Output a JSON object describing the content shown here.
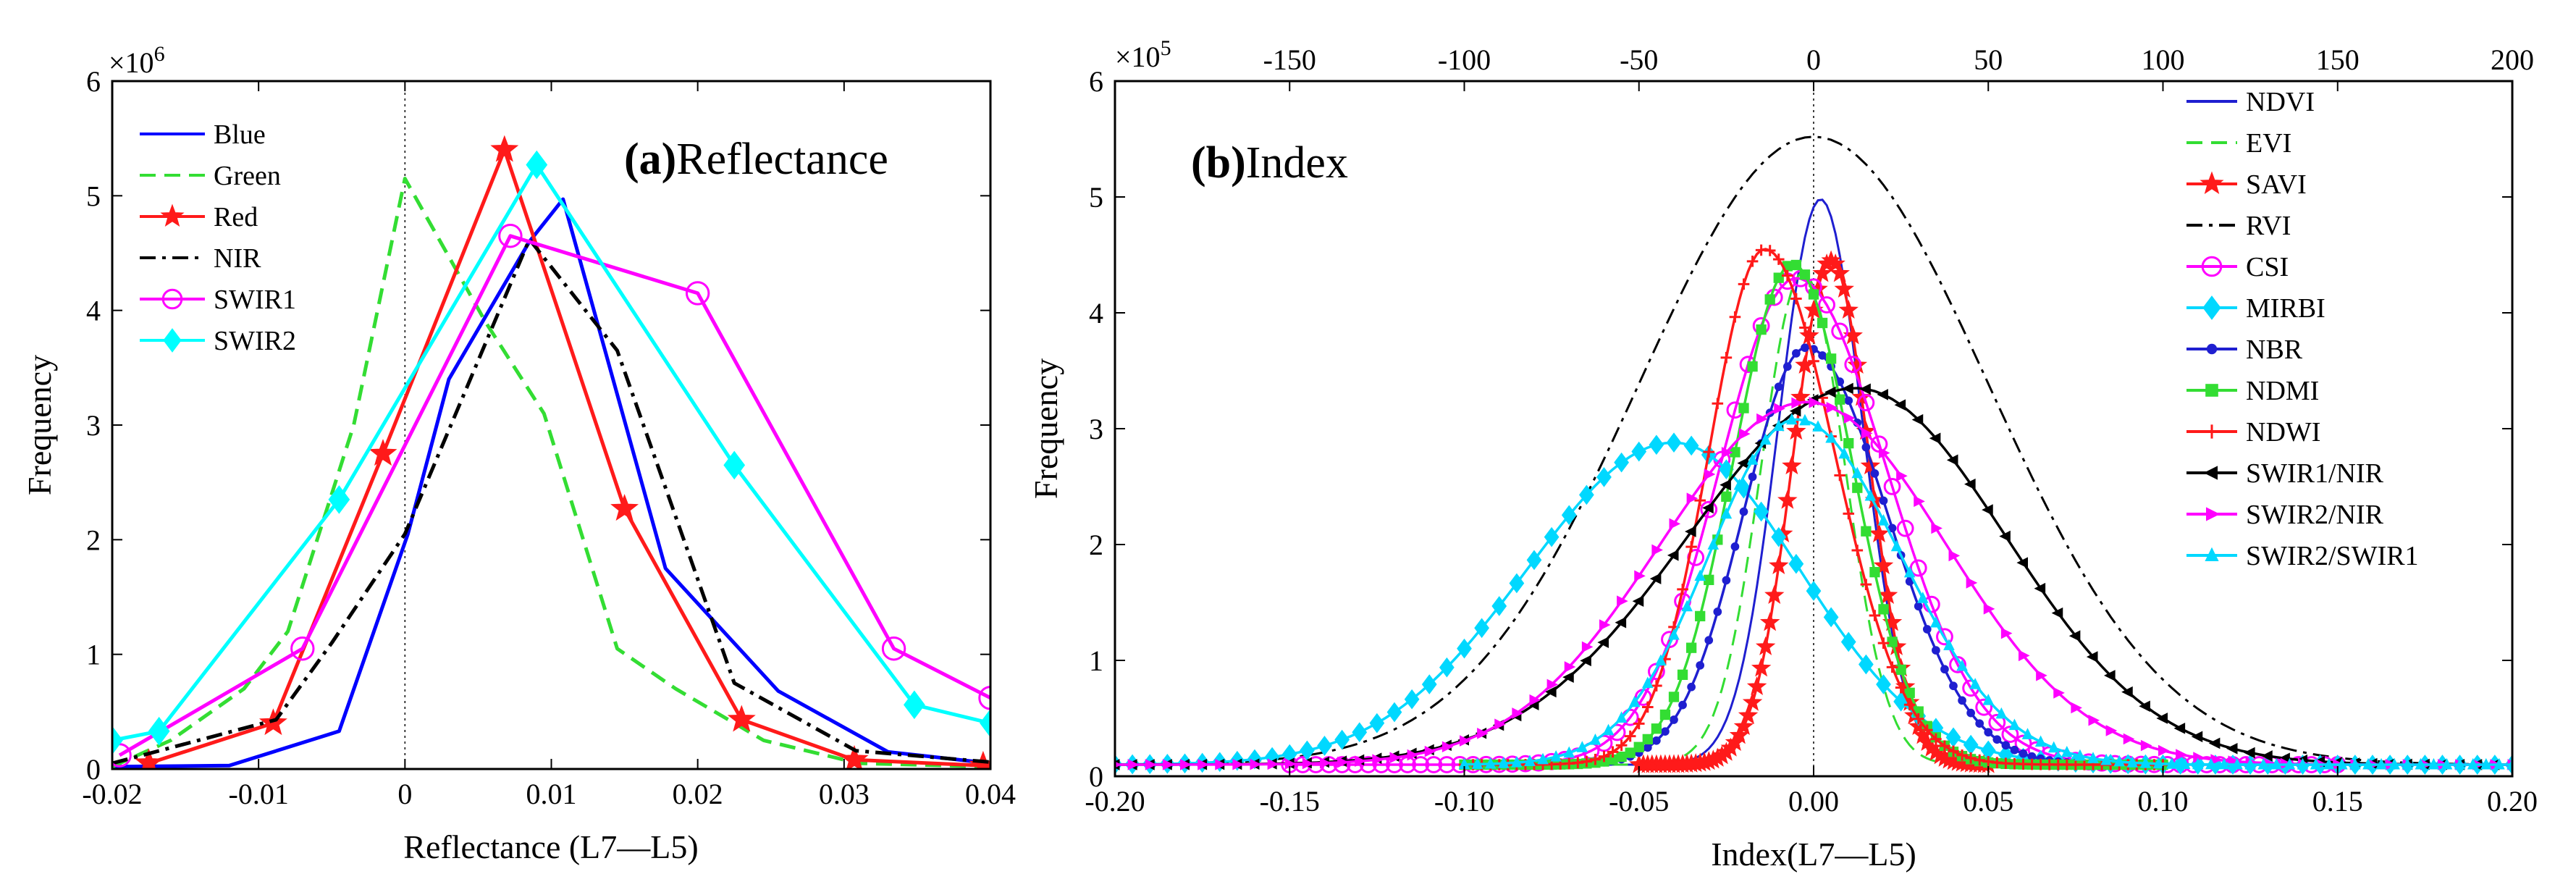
{
  "chart_data": [
    {
      "panel": "a",
      "type": "line",
      "title_prefix": "(a)",
      "title": "Reflectance",
      "xlabel": "Reflectance (L7—L5)",
      "ylabel": "Frequency",
      "exponent_label": "×10",
      "exponent_power": "6",
      "xlim": [
        -0.02,
        0.04
      ],
      "ylim": [
        0,
        6
      ],
      "xticks": [
        -0.02,
        -0.01,
        0,
        0.01,
        0.02,
        0.03,
        0.04
      ],
      "xtick_labels": [
        "-0.02",
        "-0.01",
        "0",
        "0.01",
        "0.02",
        "0.03",
        "0.04"
      ],
      "yticks": [
        0,
        1,
        2,
        3,
        4,
        5,
        6
      ],
      "ytick_labels": [
        "0",
        "1",
        "2",
        "3",
        "4",
        "5",
        "6"
      ],
      "vline_x": 0,
      "legend_position": "top-left",
      "series": [
        {
          "name": "Blue",
          "color": "#0000ff",
          "dash": "solid",
          "marker": "none",
          "x": [
            -0.02,
            -0.012,
            -0.0045,
            0.0002,
            0.003,
            0.0085,
            0.0108,
            0.0178,
            0.0255,
            0.033,
            0.04
          ],
          "y": [
            0.02,
            0.03,
            0.33,
            2.05,
            3.4,
            4.6,
            4.97,
            1.75,
            0.68,
            0.15,
            0.05
          ]
        },
        {
          "name": "Green",
          "color": "#33dd33",
          "dash": "dashed",
          "marker": "none",
          "x": [
            -0.02,
            -0.016,
            -0.011,
            -0.008,
            -0.0035,
            0.0,
            0.0055,
            0.0095,
            0.0145,
            0.0185,
            0.0245,
            0.031,
            0.04
          ],
          "y": [
            0.02,
            0.25,
            0.7,
            1.2,
            3.0,
            5.15,
            3.9,
            3.1,
            1.05,
            0.7,
            0.25,
            0.05,
            0.02
          ]
        },
        {
          "name": "Red",
          "color": "#ff1a1a",
          "dash": "solid",
          "marker": "star",
          "x": [
            -0.0175,
            -0.009,
            -0.0015,
            0.0068,
            0.015,
            0.023,
            0.0307,
            0.0395
          ],
          "y": [
            0.05,
            0.4,
            2.75,
            5.4,
            2.27,
            0.43,
            0.08,
            0.03
          ]
        },
        {
          "name": "NIR",
          "color": "#000000",
          "dash": "dashdot",
          "marker": "none",
          "x": [
            -0.02,
            -0.0088,
            -0.005,
            0.0,
            0.0085,
            0.0145,
            0.0225,
            0.0308,
            0.04
          ],
          "y": [
            0.05,
            0.43,
            1.1,
            2.05,
            4.62,
            3.65,
            0.75,
            0.16,
            0.06
          ]
        },
        {
          "name": "SWIR1",
          "color": "#ff00ff",
          "dash": "solid",
          "marker": "circle",
          "x": [
            -0.0195,
            -0.007,
            0.0072,
            0.02,
            0.0334,
            0.04
          ],
          "y": [
            0.12,
            1.05,
            4.65,
            4.15,
            1.05,
            0.62
          ]
        },
        {
          "name": "SWIR2",
          "color": "#00ffff",
          "dash": "solid",
          "marker": "diamond",
          "x": [
            -0.02,
            -0.0168,
            -0.0045,
            0.009,
            0.0225,
            0.0348,
            0.04
          ],
          "y": [
            0.25,
            0.33,
            2.35,
            5.27,
            2.65,
            0.56,
            0.4
          ]
        }
      ]
    },
    {
      "panel": "b",
      "type": "line",
      "title_prefix": "(b)",
      "title": "Index",
      "xlabel": "Index(L7—L5)",
      "ylabel": "Frequency",
      "exponent_label": "×10",
      "exponent_power": "5",
      "xlim": [
        -0.2,
        0.2
      ],
      "ylim": [
        0,
        6
      ],
      "xticks": [
        -0.2,
        -0.15,
        -0.1,
        -0.05,
        0.0,
        0.05,
        0.1,
        0.15,
        0.2
      ],
      "xtick_labels": [
        "-0.20",
        "-0.15",
        "-0.10",
        "-0.05",
        "0.00",
        "0.05",
        "0.10",
        "0.15",
        "0.20"
      ],
      "yticks": [
        0,
        1,
        2,
        3,
        4,
        5,
        6
      ],
      "ytick_labels": [
        "0",
        "1",
        "2",
        "3",
        "4",
        "5",
        "6"
      ],
      "top_xlim": [
        -200,
        200
      ],
      "top_xticks": [
        -150,
        -100,
        -50,
        0,
        50,
        100,
        150,
        200
      ],
      "top_xtick_labels": [
        "-150",
        "-100",
        "-50",
        "0",
        "50",
        "100",
        "150",
        "200"
      ],
      "vline_x": 0,
      "legend_position": "top-right",
      "series": [
        {
          "name": "NDVI",
          "color": "#1f1fd0",
          "dash": "solid",
          "marker": "none",
          "peak_x": 0.002,
          "peak_y": 4.88,
          "sigma_l": 0.012,
          "sigma_r": 0.012,
          "x_min": -0.1,
          "x_max": 0.1,
          "axis": "bottom"
        },
        {
          "name": "EVI",
          "color": "#33dd33",
          "dash": "dashed",
          "marker": "none",
          "peak_x": -0.003,
          "peak_y": 4.25,
          "sigma_l": 0.012,
          "sigma_r": 0.012,
          "x_min": -0.1,
          "x_max": 0.1,
          "axis": "bottom"
        },
        {
          "name": "SAVI",
          "color": "#ff1a1a",
          "dash": "solid",
          "marker": "star",
          "peak_x": 0.005,
          "peak_y": 4.35,
          "sigma_l": 0.011,
          "sigma_r": 0.011,
          "x_min": -0.05,
          "x_max": 0.05,
          "axis": "bottom"
        },
        {
          "name": "RVI",
          "color": "#000000",
          "dash": "dashdot",
          "marker": "none",
          "peak_x": 0.0,
          "peak_y": 5.42,
          "sigma_l": 0.05,
          "sigma_r": 0.05,
          "x_min": -0.2,
          "x_max": 0.2,
          "axis": "bottom"
        },
        {
          "name": "CSI",
          "color": "#ff00ff",
          "dash": "solid",
          "marker": "circle",
          "peak_x": -0.005,
          "peak_y": 4.2,
          "sigma_l": 0.022,
          "sigma_r": 0.026,
          "x_min": -0.15,
          "x_max": 0.15,
          "axis": "bottom"
        },
        {
          "name": "MIRBI",
          "color": "#00d8ff",
          "dash": "solid",
          "marker": "diamond",
          "peak_x": -40,
          "peak_y": 2.78,
          "sigma_l": 42,
          "sigma_r": 36,
          "x_min": -200,
          "x_max": 200,
          "axis": "top"
        },
        {
          "name": "NBR",
          "color": "#1f1fd0",
          "dash": "solid",
          "marker": "dot",
          "peak_x": -0.002,
          "peak_y": 3.6,
          "sigma_l": 0.018,
          "sigma_r": 0.023,
          "x_min": -0.1,
          "x_max": 0.1,
          "axis": "bottom"
        },
        {
          "name": "NDMI",
          "color": "#33dd33",
          "dash": "solid",
          "marker": "square",
          "peak_x": -0.006,
          "peak_y": 4.32,
          "sigma_l": 0.017,
          "sigma_r": 0.017,
          "x_min": -0.1,
          "x_max": 0.1,
          "axis": "bottom"
        },
        {
          "name": "NDWI",
          "color": "#ff1a1a",
          "dash": "solid",
          "marker": "plus",
          "peak_x": -0.014,
          "peak_y": 4.45,
          "sigma_l": 0.016,
          "sigma_r": 0.02,
          "x_min": -0.1,
          "x_max": 0.1,
          "axis": "bottom"
        },
        {
          "name": "SWIR1/NIR",
          "color": "#000000",
          "dash": "solid",
          "marker": "tri-left",
          "peak_x": 0.012,
          "peak_y": 3.25,
          "sigma_l": 0.048,
          "sigma_r": 0.043,
          "x_min": -0.2,
          "x_max": 0.2,
          "axis": "bottom"
        },
        {
          "name": "SWIR2/NIR",
          "color": "#ff00ff",
          "dash": "solid",
          "marker": "tri-right",
          "peak_x": -0.002,
          "peak_y": 3.13,
          "sigma_l": 0.042,
          "sigma_r": 0.04,
          "x_min": -0.2,
          "x_max": 0.2,
          "axis": "bottom"
        },
        {
          "name": "SWIR2/SWIR1",
          "color": "#00d8ff",
          "dash": "solid",
          "marker": "tri-up",
          "peak_x": -0.005,
          "peak_y": 2.98,
          "sigma_l": 0.025,
          "sigma_r": 0.03,
          "x_min": -0.1,
          "x_max": 0.2,
          "axis": "bottom"
        }
      ]
    }
  ]
}
